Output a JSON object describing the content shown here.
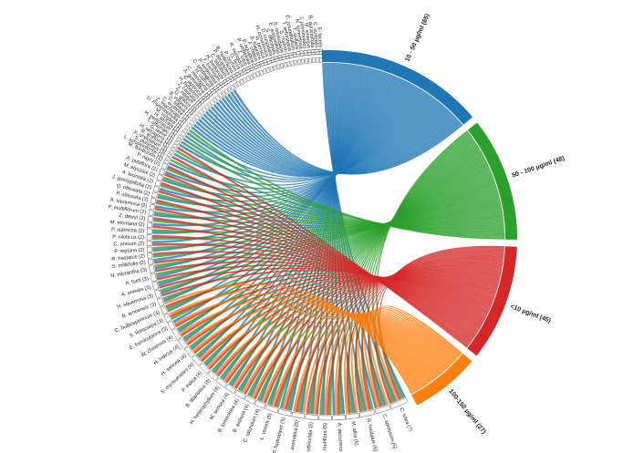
{
  "chart_data": {
    "type": "chord",
    "groups": [
      {
        "label": "10 - 50 µg/ml (65)",
        "count": 65,
        "color": "#1f77b4"
      },
      {
        "label": "50 - 100 µg/ml (48)",
        "count": 48,
        "color": "#2ca02c"
      },
      {
        "label": "<10 µg/ml (45)",
        "count": 45,
        "color": "#d62728"
      },
      {
        "label": "100-150 µg/ml (27)",
        "count": 27,
        "color": "#ff7f0e"
      }
    ],
    "species": [
      {
        "label": "C. lutea (7)",
        "count": 7
      },
      {
        "label": "C. spinosum (6)",
        "count": 6
      },
      {
        "label": "R. hastatus (6)",
        "count": 6
      },
      {
        "label": "M. alba (5)",
        "count": 5
      },
      {
        "label": "A. decurrens (5)",
        "count": 5
      },
      {
        "label": "A. nudiflora (5)",
        "count": 5
      },
      {
        "label": "S. orbiculata (5)",
        "count": 5
      },
      {
        "label": "S. aromatica (5)",
        "count": 5
      },
      {
        "label": "P. hydropiper (5)",
        "count": 5
      },
      {
        "label": "L. verum (5)",
        "count": 5
      },
      {
        "label": "C. rotundum (4)",
        "count": 4
      },
      {
        "label": "B. axillaris (4)",
        "count": 4
      },
      {
        "label": "B. tomentosa (4)",
        "count": 4
      },
      {
        "label": "M. sericea (4)",
        "count": 4
      },
      {
        "label": "H. heterophyllum (4)",
        "count": 4
      },
      {
        "label": "B. libanotica (4)",
        "count": 4
      },
      {
        "label": "P. indica (4)",
        "count": 4
      },
      {
        "label": "S. myosuroides (4)",
        "count": 4
      },
      {
        "label": "H. sericea (4)",
        "count": 4
      },
      {
        "label": "H. indicus (4)",
        "count": 4
      },
      {
        "label": "W. chinensis (4)",
        "count": 4
      },
      {
        "label": "E. foeniculacea (3)",
        "count": 3
      },
      {
        "label": "S. tetracarpa (3)",
        "count": 3
      },
      {
        "label": "C. bulbospermum (3)",
        "count": 3
      },
      {
        "label": "B. arnoensis (3)",
        "count": 3
      },
      {
        "label": "H. squamosa (3)",
        "count": 3
      },
      {
        "label": "A. anisala (3)",
        "count": 3
      },
      {
        "label": "A. foeti (3)",
        "count": 3
      },
      {
        "label": "N. micrantha (3)",
        "count": 3
      },
      {
        "label": "S. millefolia (2)",
        "count": 2
      },
      {
        "label": "R. hastatus (2)",
        "count": 2
      },
      {
        "label": "P. reptans (2)",
        "count": 2
      },
      {
        "label": "C. anisum (2)",
        "count": 2
      },
      {
        "label": "P. niloticus (2)",
        "count": 2
      },
      {
        "label": "P. subrecta (2)",
        "count": 2
      },
      {
        "label": "M. montana (2)",
        "count": 2
      },
      {
        "label": "Z. dewyi (2)",
        "count": 2
      },
      {
        "label": "P. multiflorum (2)",
        "count": 2
      },
      {
        "label": "A. squamosa (2)",
        "count": 2
      },
      {
        "label": "P. obtusata (2)",
        "count": 2
      },
      {
        "label": "O. obtusata (2)",
        "count": 2
      },
      {
        "label": "J. gossypiifolia (2)",
        "count": 2
      },
      {
        "label": "A. laciniata (2)",
        "count": 2
      },
      {
        "label": "M. alyssoni (2)",
        "count": 2
      },
      {
        "label": "A. pubiflora (2)",
        "count": 2
      },
      {
        "label": "P. nigra (2)",
        "count": 2
      },
      {
        "label": "M. floribunda (1)",
        "count": 1
      },
      {
        "label": "L. schweinfurthii (1)",
        "count": 1
      },
      {
        "label": "S. puniceus (1)",
        "count": 1
      },
      {
        "label": "X. undulatum (1)",
        "count": 1
      },
      {
        "label": "R. acetosa (1)",
        "count": 1
      },
      {
        "label": "H. tetragona (1)",
        "count": 1
      },
      {
        "label": "G. laeve (1)",
        "count": 1
      },
      {
        "label": "T. officinale (1)",
        "count": 1
      },
      {
        "label": "H. perforatum (1)",
        "count": 1
      },
      {
        "label": "H. serrata (1)",
        "count": 1
      },
      {
        "label": "M. vulgare (1)",
        "count": 1
      },
      {
        "label": "U. rhynchophylla (1)",
        "count": 1
      },
      {
        "label": "Z. mucronata (1)",
        "count": 1
      },
      {
        "label": "C. erythrea (1)",
        "count": 1
      },
      {
        "label": "C. siliqua (1)",
        "count": 1
      },
      {
        "label": "B. vulgaris (1)",
        "count": 1
      },
      {
        "label": "G. glabra (1)",
        "count": 1
      },
      {
        "label": "Z. nitidum (1)",
        "count": 1
      },
      {
        "label": "Z. carinata (1)",
        "count": 1
      },
      {
        "label": "H. hybridum (1)",
        "count": 1
      },
      {
        "label": "C. japonica (1)",
        "count": 1
      },
      {
        "label": "A. gummifera (1)",
        "count": 1
      },
      {
        "label": "C. monogyna (1)",
        "count": 1
      },
      {
        "label": "H. caffrum (1)",
        "count": 1
      },
      {
        "label": "C. seypodiolia (1)",
        "count": 1
      },
      {
        "label": "P. serpentina (1)",
        "count": 1
      },
      {
        "label": "F. excelsum (1)",
        "count": 1
      },
      {
        "label": "H. barbarum (1)",
        "count": 1
      },
      {
        "label": "C. latifolium (1)",
        "count": 1
      },
      {
        "label": "P. decaisnea (1)",
        "count": 1
      },
      {
        "label": "B. hederacea (1)",
        "count": 1
      },
      {
        "label": "P. zeyheri (1)",
        "count": 1
      },
      {
        "label": "O. ficus (1)",
        "count": 1
      },
      {
        "label": "R. nerioides (1)",
        "count": 1
      },
      {
        "label": "Z. lotus (1)",
        "count": 1
      },
      {
        "label": "P. umbellata (1)",
        "count": 1
      },
      {
        "label": "P. aquatica (1)",
        "count": 1
      },
      {
        "label": "F. cretica (1)",
        "count": 1
      },
      {
        "label": "A. fragrans (1)",
        "count": 1
      },
      {
        "label": "H. persica (1)",
        "count": 1
      },
      {
        "label": "H. convolvulus (1)",
        "count": 1
      },
      {
        "label": "D. cuspidata (1)",
        "count": 1
      },
      {
        "label": "S. officinalis (1)",
        "count": 1
      },
      {
        "label": "E. angustifolia (1)",
        "count": 1
      },
      {
        "label": "S. rebaudiana (1)",
        "count": 1
      },
      {
        "label": "S. nudum (1)",
        "count": 1
      },
      {
        "label": "T. sebastiana (1)",
        "count": 1
      },
      {
        "label": "C. rotundifolium (1)",
        "count": 1
      },
      {
        "label": "T. axillaris (1)",
        "count": 1
      },
      {
        "label": "N. tomentosa (1)",
        "count": 1
      },
      {
        "label": "J. jasminoides (1)",
        "count": 1
      },
      {
        "label": "M. sinensis (1)",
        "count": 1
      },
      {
        "label": "B. aurantiifolia (1)",
        "count": 1
      },
      {
        "label": "C. australis (1)",
        "count": 1
      },
      {
        "label": "E. lacera (1)",
        "count": 1
      }
    ]
  }
}
